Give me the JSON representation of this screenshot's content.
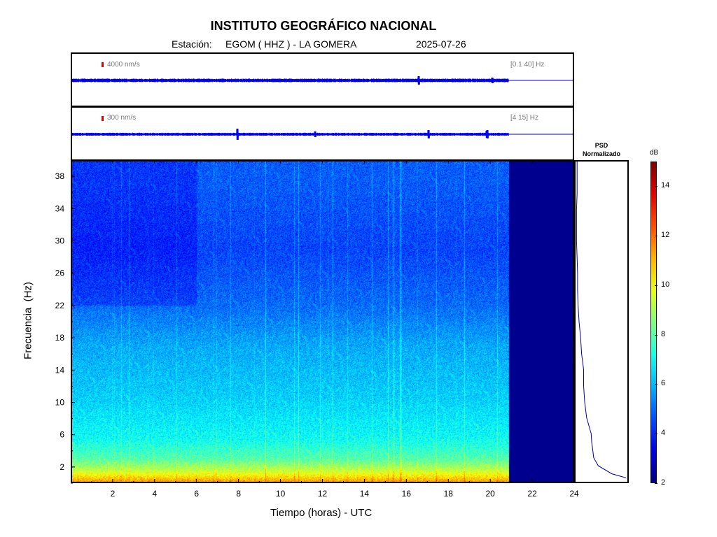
{
  "header": {
    "institution": "INSTITUTO GEOGRÁFICO NACIONAL",
    "station_label": "Estación:",
    "station": "EGOM ( HHZ ) - LA GOMERA",
    "date": "2025-07-26"
  },
  "trace1": {
    "scale_label": "4000 nm/s",
    "filter_label": "[0.1 40] Hz"
  },
  "trace2": {
    "scale_label": "300 nm/s",
    "filter_label": "[4 15] Hz"
  },
  "psd": {
    "title_line1": "PSD",
    "title_line2": "Normalizado"
  },
  "colorbar": {
    "unit": "dB",
    "ticks": [
      2,
      4,
      6,
      8,
      10,
      12,
      14
    ],
    "range": [
      2,
      15
    ]
  },
  "colors": {
    "trace": "#0000ee",
    "scale_bar": "#e00000",
    "no_data": "#00008f"
  },
  "chart_data": {
    "type": "heatmap",
    "title": "INSTITUTO GEOGRÁFICO NACIONAL",
    "xlabel": "Tiempo (horas) - UTC",
    "ylabel": "Frecuencia  (Hz)",
    "xlim": [
      0,
      24
    ],
    "ylim": [
      0,
      40
    ],
    "x_ticks": [
      2,
      4,
      6,
      8,
      10,
      12,
      14,
      16,
      18,
      20,
      22,
      24
    ],
    "y_ticks": [
      2,
      6,
      10,
      14,
      18,
      22,
      26,
      30,
      34,
      38
    ],
    "data_end_hour": 20.9,
    "frequency_band_levels_db": [
      {
        "f_min": 0,
        "f_max": 1,
        "db": 11
      },
      {
        "f_min": 1,
        "f_max": 2,
        "db": 9.5
      },
      {
        "f_min": 2,
        "f_max": 4,
        "db": 8
      },
      {
        "f_min": 4,
        "f_max": 7,
        "db": 7
      },
      {
        "f_min": 7,
        "f_max": 14,
        "db": 6.3
      },
      {
        "f_min": 14,
        "f_max": 20,
        "db": 5.8
      },
      {
        "f_min": 20,
        "f_max": 24,
        "db": 5
      },
      {
        "f_min": 24,
        "f_max": 34,
        "db": 4.5
      },
      {
        "f_min": 34,
        "f_max": 40,
        "db": 4.8
      }
    ],
    "psd_profile": [
      {
        "f": 0.5,
        "v": 1.0
      },
      {
        "f": 1,
        "v": 0.72
      },
      {
        "f": 2,
        "v": 0.45
      },
      {
        "f": 3,
        "v": 0.36
      },
      {
        "f": 4,
        "v": 0.34
      },
      {
        "f": 5,
        "v": 0.32
      },
      {
        "f": 6,
        "v": 0.31
      },
      {
        "f": 8,
        "v": 0.22
      },
      {
        "f": 10,
        "v": 0.18
      },
      {
        "f": 12,
        "v": 0.16
      },
      {
        "f": 14,
        "v": 0.16
      },
      {
        "f": 16,
        "v": 0.12
      },
      {
        "f": 18,
        "v": 0.1
      },
      {
        "f": 20,
        "v": 0.07
      },
      {
        "f": 22,
        "v": 0.05
      },
      {
        "f": 24,
        "v": 0.04
      },
      {
        "f": 26,
        "v": 0.04
      },
      {
        "f": 28,
        "v": 0.03
      },
      {
        "f": 30,
        "v": 0.02
      },
      {
        "f": 32,
        "v": 0.02
      },
      {
        "f": 34,
        "v": 0.02
      },
      {
        "f": 36,
        "v": 0.03
      },
      {
        "f": 38,
        "v": 0.03
      },
      {
        "f": 40,
        "v": 0.03
      }
    ]
  }
}
